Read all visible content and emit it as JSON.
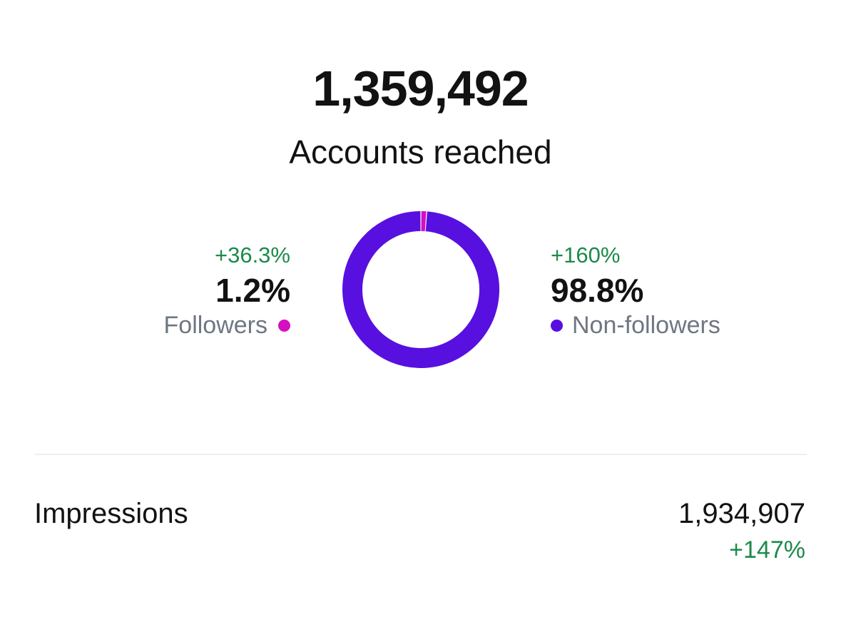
{
  "reach": {
    "total": "1,359,492",
    "label": "Accounts reached"
  },
  "followers": {
    "change": "+36.3%",
    "percent": "1.2%",
    "label": "Followers",
    "color": "#d40fbf"
  },
  "non_followers": {
    "change": "+160%",
    "percent": "98.8%",
    "label": "Non-followers",
    "color": "#5710e0"
  },
  "impressions": {
    "label": "Impressions",
    "value": "1,934,907",
    "change": "+147%"
  },
  "chart_data": {
    "type": "pie",
    "categories": [
      "Followers",
      "Non-followers"
    ],
    "values": [
      1.2,
      98.8
    ],
    "colors": [
      "#d40fbf",
      "#5710e0"
    ],
    "title": "",
    "donut": true
  }
}
